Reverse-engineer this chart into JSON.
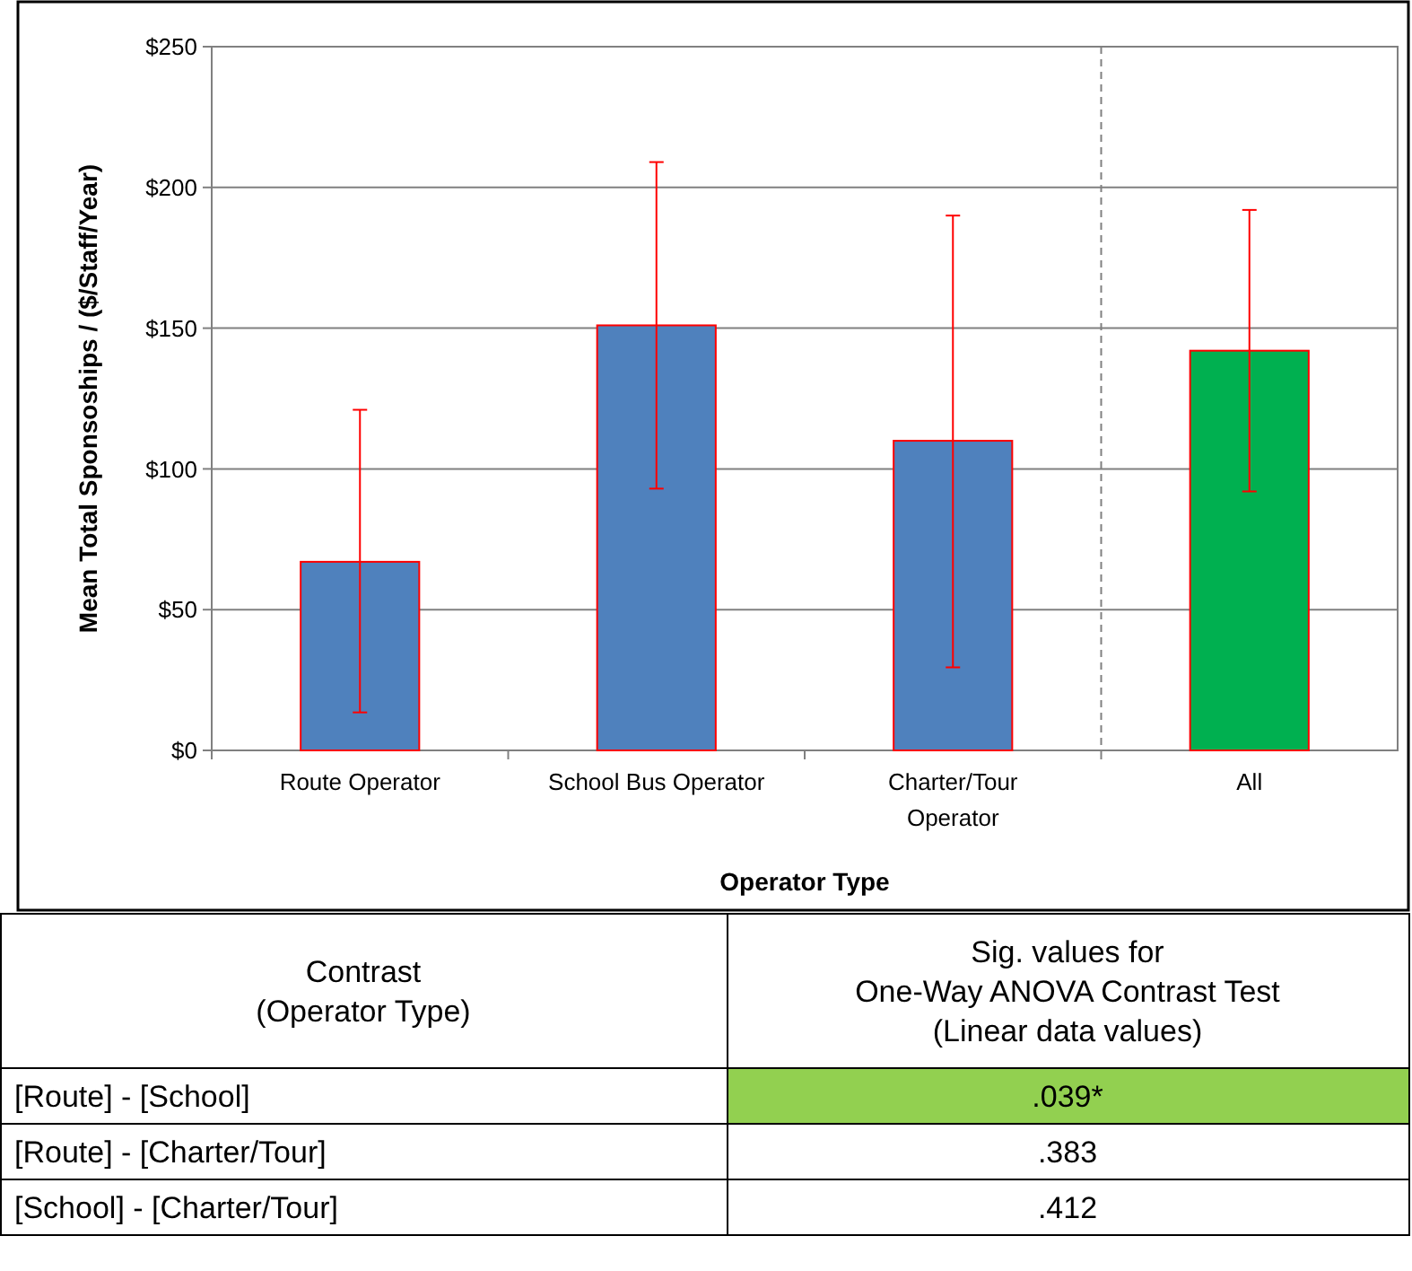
{
  "chart_data": [
    {
      "type": "bar",
      "xlabel": "Operator Type",
      "ylabel": "Mean Total Sponsoships / ($/Staff/Year)",
      "categories": [
        "Route Operator",
        "School Bus Operator",
        "Charter/Tour Operator",
        "All"
      ],
      "values": [
        67,
        151,
        110,
        142
      ],
      "colors": [
        "#4f81bd",
        "#4f81bd",
        "#4f81bd",
        "#00b050"
      ],
      "errors": [
        [
          13.5,
          121
        ],
        [
          93,
          209
        ],
        [
          29.5,
          190
        ],
        [
          92,
          192
        ]
      ],
      "ylim": [
        0,
        250
      ],
      "yticks": [
        {
          "value": 0,
          "label": "$0"
        },
        {
          "value": 50,
          "label": "$50"
        },
        {
          "value": 100,
          "label": "$100"
        },
        {
          "value": 150,
          "label": "$150"
        },
        {
          "value": 200,
          "label": "$200"
        },
        {
          "value": 250,
          "label": "$250"
        }
      ],
      "grid": "y"
    },
    {
      "type": "other",
      "annotations": [
        "Contrast\n(Operator Type)",
        "Sig. values for\nOne-Way ANOVA Contrast Test\n(Linear data values)",
        "[Route] - [School]",
        ".039*",
        "[Route] - [Charter/Tour]",
        ".383",
        "[School] - [Charter/Tour]",
        ".412"
      ],
      "colors": [
        null,
        null,
        null,
        "#92d050",
        null,
        null,
        null,
        null
      ]
    }
  ]
}
